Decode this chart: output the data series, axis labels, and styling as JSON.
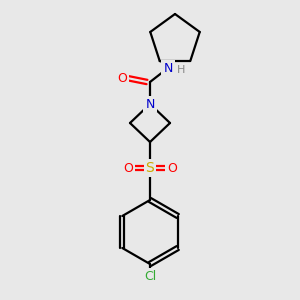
{
  "background_color": "#e8e8e8",
  "atom_colors": {
    "C": "#000000",
    "N": "#0000cc",
    "O": "#ff0000",
    "S": "#ccaa00",
    "Cl": "#33aa33",
    "H": "#888888"
  },
  "bond_color": "#000000",
  "figsize": [
    3.0,
    3.0
  ],
  "dpi": 100,
  "lw": 1.6
}
